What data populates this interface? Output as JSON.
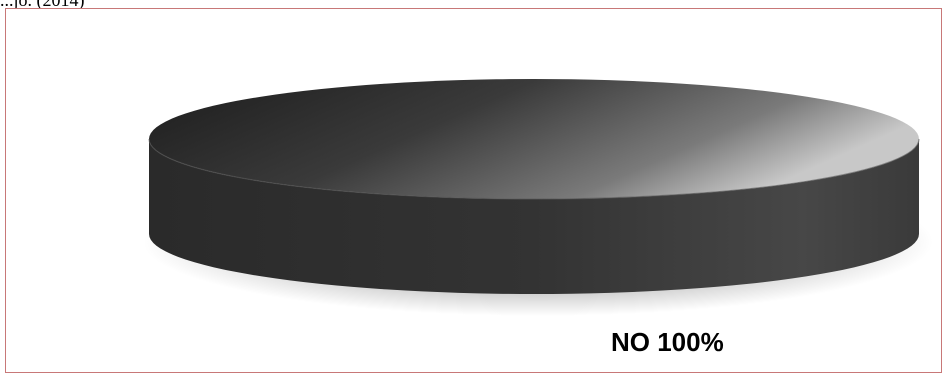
{
  "caption": {
    "text": "...jo. (2014)"
  },
  "colors": {
    "frame_border": "#c87878",
    "slice_dark": "#1e1e1e",
    "slice_light": "#c4c4c4",
    "side_dark": "#262626",
    "side_mid": "#454545"
  },
  "chart_data": {
    "type": "pie",
    "style": "3d",
    "title": "",
    "categories": [
      "NO"
    ],
    "values": [
      100
    ],
    "labels": [
      {
        "category": "NO",
        "text": "NO 100%"
      }
    ],
    "legend": "none"
  }
}
